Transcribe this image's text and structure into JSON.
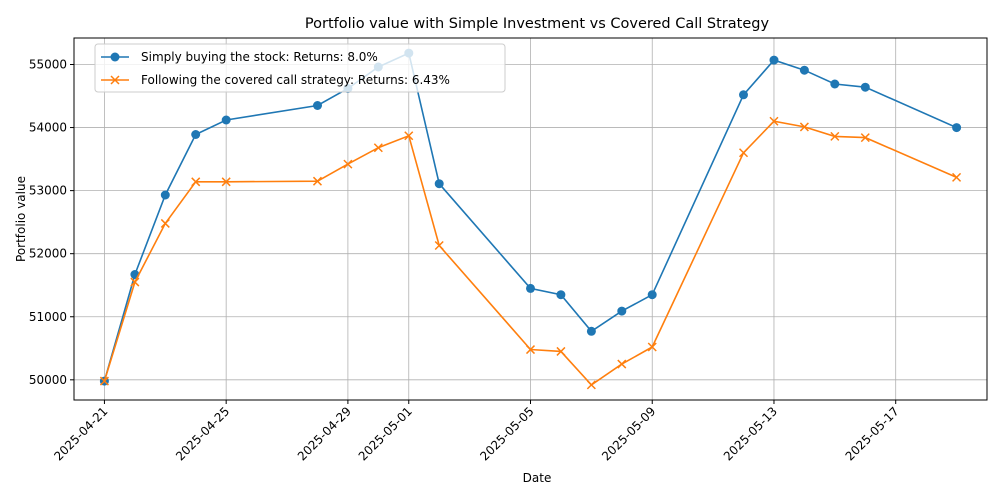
{
  "chart_data": {
    "type": "line",
    "title": "Portfolio value with Simple Investment vs Covered Call Strategy",
    "xlabel": "Date",
    "ylabel": "Portfolio value",
    "xlim": [
      "2025-04-20",
      "2025-05-20"
    ],
    "ylim": [
      49680,
      55420
    ],
    "grid": true,
    "legend_position": "upper-left",
    "x_ticks": [
      "2025-04-21",
      "2025-04-25",
      "2025-04-29",
      "2025-05-01",
      "2025-05-05",
      "2025-05-09",
      "2025-05-13",
      "2025-05-17"
    ],
    "y_ticks": [
      50000,
      51000,
      52000,
      53000,
      54000,
      55000
    ],
    "x": [
      "2025-04-21",
      "2025-04-22",
      "2025-04-23",
      "2025-04-24",
      "2025-04-25",
      "2025-04-28",
      "2025-04-29",
      "2025-04-30",
      "2025-05-01",
      "2025-05-02",
      "2025-05-05",
      "2025-05-06",
      "2025-05-07",
      "2025-05-08",
      "2025-05-09",
      "2025-05-12",
      "2025-05-13",
      "2025-05-14",
      "2025-05-15",
      "2025-05-16",
      "2025-05-19"
    ],
    "series": [
      {
        "name": "Simply buying the stock: Returns: 8.0%",
        "color": "#1f77b4",
        "marker": "circle",
        "values": [
          49980,
          51670,
          52930,
          53890,
          54120,
          54350,
          54620,
          54960,
          55180,
          53110,
          51450,
          51350,
          50770,
          51090,
          51350,
          54520,
          55070,
          54910,
          54690,
          54640,
          54000
        ]
      },
      {
        "name": "Following the covered call strategy: Returns: 6.43%",
        "color": "#ff7f0e",
        "marker": "x",
        "values": [
          49980,
          51550,
          52480,
          53140,
          53140,
          53150,
          53420,
          53680,
          53870,
          52130,
          50480,
          50450,
          49920,
          50250,
          50520,
          53600,
          54100,
          54010,
          53860,
          53840,
          53210
        ]
      }
    ]
  }
}
